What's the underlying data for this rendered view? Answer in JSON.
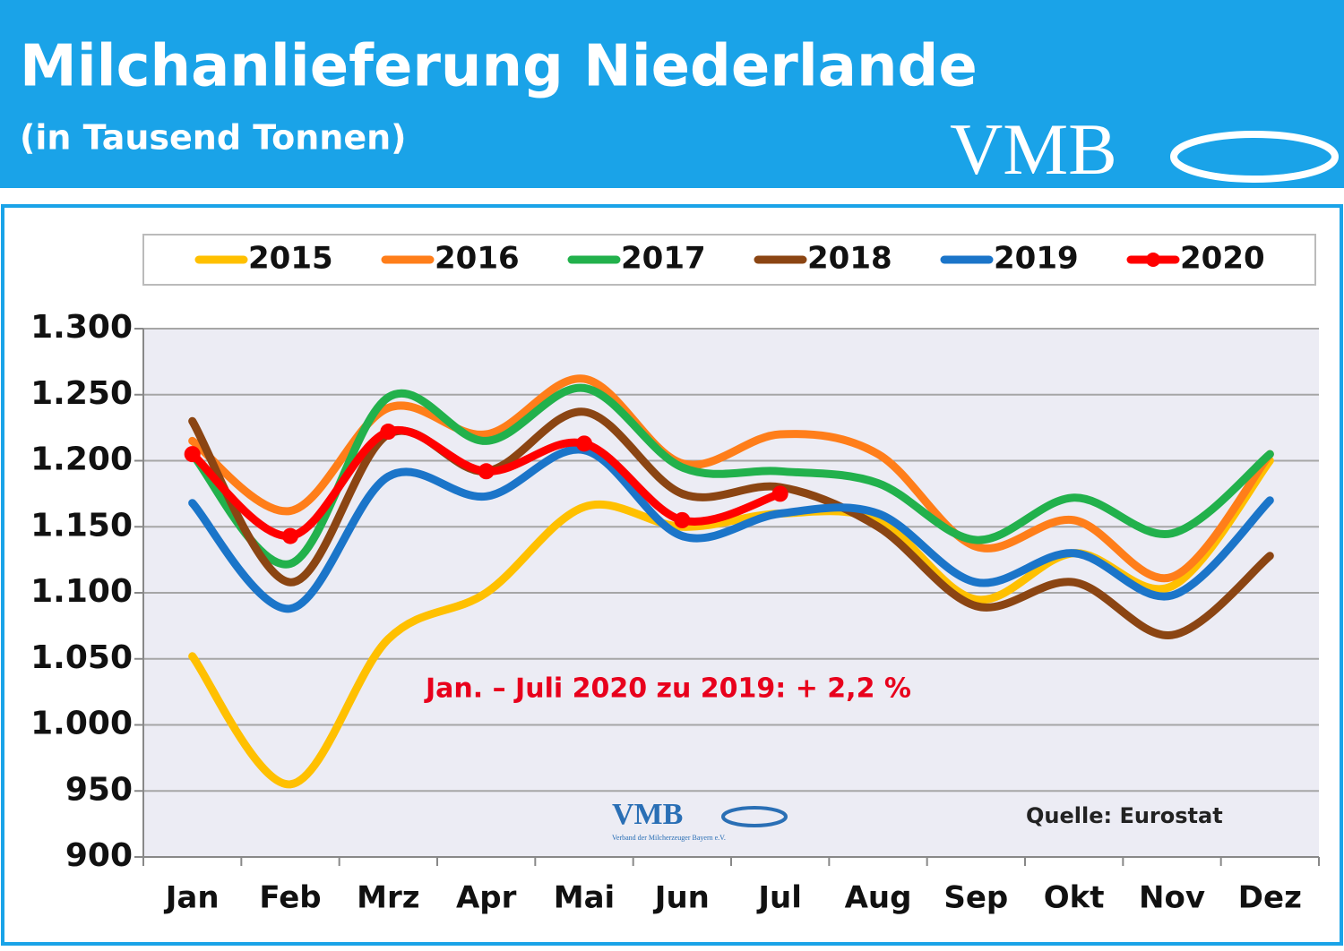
{
  "chart_data": {
    "type": "line",
    "title": "Milchanlieferung Niederlande",
    "subtitle": "(in Tausend Tonnen)",
    "logo": "VMB",
    "logo_small": "VMB",
    "logo_caption": "Verband der Milcherzeuger Bayern e.V.",
    "annotation": "Jan. – Juli 2020 zu 2019: + 2,2 %",
    "source": "Quelle: Eurostat",
    "categories": [
      "Jan",
      "Feb",
      "Mrz",
      "Apr",
      "Mai",
      "Jun",
      "Jul",
      "Aug",
      "Sep",
      "Okt",
      "Nov",
      "Dez"
    ],
    "ylim": [
      900,
      1300
    ],
    "yticks": [
      {
        "value": 900,
        "label": "900"
      },
      {
        "value": 950,
        "label": "950"
      },
      {
        "value": 1000,
        "label": "1.000"
      },
      {
        "value": 1050,
        "label": "1.050"
      },
      {
        "value": 1100,
        "label": "1.100"
      },
      {
        "value": 1150,
        "label": "1.150"
      },
      {
        "value": 1200,
        "label": "1.200"
      },
      {
        "value": 1250,
        "label": "1.250"
      },
      {
        "value": 1300,
        "label": "1.300"
      }
    ],
    "grid": true,
    "legend": "top",
    "series": [
      {
        "name": "2015",
        "color": "#ffc000",
        "values": [
          1052,
          955,
          1065,
          1100,
          1165,
          1150,
          1160,
          1155,
          1095,
          1130,
          1105,
          1200
        ]
      },
      {
        "name": "2016",
        "color": "#ff7e1a",
        "values": [
          1215,
          1162,
          1240,
          1220,
          1262,
          1198,
          1220,
          1205,
          1135,
          1155,
          1112,
          1205
        ]
      },
      {
        "name": "2017",
        "color": "#22b14c",
        "values": [
          1205,
          1122,
          1248,
          1215,
          1255,
          1195,
          1192,
          1183,
          1140,
          1172,
          1145,
          1205
        ]
      },
      {
        "name": "2018",
        "color": "#8b4513",
        "values": [
          1230,
          1108,
          1220,
          1192,
          1237,
          1175,
          1180,
          1150,
          1090,
          1108,
          1068,
          1128
        ]
      },
      {
        "name": "2019",
        "color": "#1b75c9",
        "values": [
          1168,
          1088,
          1188,
          1173,
          1208,
          1143,
          1160,
          1160,
          1108,
          1130,
          1098,
          1170
        ]
      },
      {
        "name": "2020",
        "color": "#ff0000",
        "markers": true,
        "values": [
          1205,
          1143,
          1222,
          1192,
          1213,
          1155,
          1175,
          null,
          null,
          null,
          null,
          null
        ]
      }
    ]
  }
}
